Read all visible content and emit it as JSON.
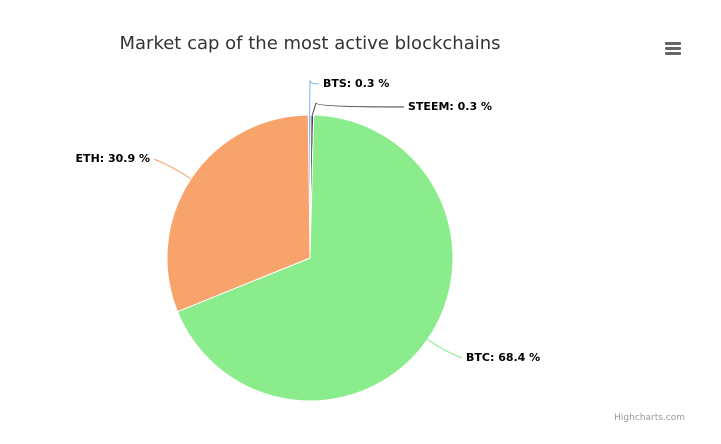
{
  "chart_data": {
    "type": "pie",
    "title": "Market cap of the most active blockchains",
    "slices": [
      {
        "name": "BTC",
        "value": 68.4,
        "color": "#8bec8b",
        "label": "BTC: 68.4 %"
      },
      {
        "name": "ETH",
        "value": 30.9,
        "color": "#f9a36c",
        "label": "ETH: 30.9 %"
      },
      {
        "name": "BTS",
        "value": 0.3,
        "color": "#7cb5ec",
        "label": "BTS: 0.3 %"
      },
      {
        "name": "STEEM",
        "value": 0.3,
        "color": "#434348",
        "label": "STEEM: 0.3 %"
      }
    ]
  },
  "menu": {
    "icon": "hamburger-icon"
  },
  "credits": {
    "label": "Highcharts.com"
  }
}
